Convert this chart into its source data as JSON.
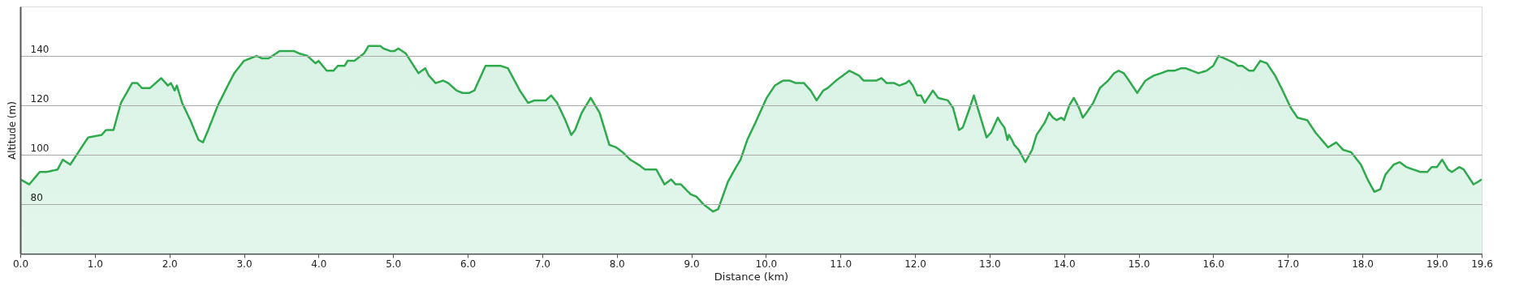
{
  "chart_data": {
    "type": "area",
    "xlabel": "Distance  (km)",
    "ylabel": "Altitude (m)",
    "xlim": [
      0,
      19.6
    ],
    "ylim": [
      60,
      160
    ],
    "xticks": [
      {
        "value": 0,
        "label": "0.0"
      },
      {
        "value": 1,
        "label": "1.0"
      },
      {
        "value": 2,
        "label": "2.0"
      },
      {
        "value": 3,
        "label": "3.0"
      },
      {
        "value": 4,
        "label": "4.0"
      },
      {
        "value": 5,
        "label": "5.0"
      },
      {
        "value": 6,
        "label": "6.0"
      },
      {
        "value": 7,
        "label": "7.0"
      },
      {
        "value": 8,
        "label": "8.0"
      },
      {
        "value": 9,
        "label": "9.0"
      },
      {
        "value": 10,
        "label": "10.0"
      },
      {
        "value": 11,
        "label": "11.0"
      },
      {
        "value": 12,
        "label": "12.0"
      },
      {
        "value": 13,
        "label": "13.0"
      },
      {
        "value": 14,
        "label": "14.0"
      },
      {
        "value": 15,
        "label": "15.0"
      },
      {
        "value": 16,
        "label": "16.0"
      },
      {
        "value": 17,
        "label": "17.0"
      },
      {
        "value": 18,
        "label": "18.0"
      },
      {
        "value": 19,
        "label": "19.0"
      },
      19.6
    ],
    "yticks": [
      80,
      100,
      120,
      140
    ],
    "grid": "y",
    "x": [
      0,
      0.12,
      0.26,
      0.35,
      0.5,
      0.57,
      0.67,
      0.8,
      0.91,
      1.09,
      1.15,
      1.25,
      1.35,
      1.5,
      1.57,
      1.63,
      1.74,
      1.89,
      1.98,
      2.02,
      2.07,
      2.1,
      2.17,
      2.28,
      2.39,
      2.45,
      2.52,
      2.65,
      2.8,
      2.87,
      3.0,
      3.17,
      3.24,
      3.33,
      3.48,
      3.67,
      3.74,
      3.85,
      3.96,
      4.0,
      4.11,
      4.2,
      4.26,
      4.35,
      4.39,
      4.48,
      4.61,
      4.67,
      4.83,
      4.87,
      4.96,
      5.02,
      5.07,
      5.17,
      5.34,
      5.43,
      5.48,
      5.57,
      5.67,
      5.74,
      5.85,
      5.93,
      6.02,
      6.09,
      6.24,
      6.3,
      6.44,
      6.54,
      6.7,
      6.81,
      6.9,
      7.05,
      7.12,
      7.2,
      7.31,
      7.39,
      7.44,
      7.53,
      7.65,
      7.77,
      7.9,
      7.99,
      8.08,
      8.18,
      8.29,
      8.38,
      8.53,
      8.64,
      8.73,
      8.79,
      8.86,
      8.99,
      9.07,
      9.16,
      9.29,
      9.36,
      9.49,
      9.6,
      9.66,
      9.75,
      9.86,
      10.01,
      10.12,
      10.23,
      10.32,
      10.4,
      10.51,
      10.6,
      10.68,
      10.77,
      10.83,
      10.94,
      11.12,
      11.25,
      11.31,
      11.48,
      11.55,
      11.62,
      11.72,
      11.79,
      11.88,
      11.92,
      11.97,
      12.03,
      12.08,
      12.13,
      12.24,
      12.31,
      12.44,
      12.51,
      12.59,
      12.64,
      12.7,
      12.79,
      12.88,
      12.96,
      13.02,
      13.11,
      13.15,
      13.2,
      13.24,
      13.26,
      13.3,
      13.33,
      13.39,
      13.48,
      13.57,
      13.63,
      13.74,
      13.8,
      13.85,
      13.9,
      13.96,
      14.0,
      14.07,
      14.13,
      14.2,
      14.25,
      14.3,
      14.39,
      14.48,
      14.59,
      14.67,
      14.73,
      14.8,
      14.87,
      14.98,
      15.09,
      15.2,
      15.3,
      15.39,
      15.48,
      15.57,
      15.63,
      15.8,
      15.91,
      16.0,
      16.07,
      16.15,
      16.22,
      16.29,
      16.33,
      16.39,
      16.48,
      16.54,
      16.63,
      16.72,
      16.83,
      16.93,
      17.04,
      17.13,
      17.26,
      17.37,
      17.54,
      17.65,
      17.74,
      17.85,
      17.98,
      18.07,
      18.16,
      18.24,
      18.31,
      18.42,
      18.5,
      18.59,
      18.78,
      18.87,
      18.93,
      19.0,
      19.07,
      19.15,
      19.2,
      19.3,
      19.36,
      19.49,
      19.55,
      19.6
    ],
    "series": [
      {
        "color": "#2eaa4c",
        "values": [
          90,
          88,
          93,
          93,
          94,
          98,
          96,
          102,
          107,
          108,
          110,
          110,
          121,
          129,
          129,
          127,
          127,
          131,
          128,
          129,
          126,
          128,
          121,
          114,
          106,
          105,
          110,
          120,
          129,
          133,
          138,
          140,
          139,
          139,
          142,
          142,
          141,
          140,
          137,
          138,
          134,
          134,
          136,
          136,
          138,
          138,
          141,
          144,
          144,
          143,
          142,
          142,
          143,
          141,
          133,
          135,
          132,
          129,
          130,
          129,
          126,
          125,
          125,
          126,
          136,
          136,
          136,
          135,
          126,
          121,
          122,
          122,
          124,
          121,
          114,
          108,
          110,
          117,
          123,
          117,
          104,
          103,
          101,
          98,
          96,
          94,
          94,
          88,
          90,
          88,
          88,
          84,
          83,
          80,
          77,
          78,
          89,
          95,
          98,
          106,
          113,
          123,
          128,
          130,
          130,
          129,
          129,
          126,
          122,
          126,
          127,
          130,
          134,
          132,
          130,
          130,
          131,
          129,
          129,
          128,
          129,
          130,
          128,
          124,
          124,
          121,
          126,
          123,
          122,
          119,
          110,
          111,
          116,
          124,
          115,
          107,
          109,
          115,
          113,
          111,
          106,
          108,
          106,
          104,
          102,
          97,
          102,
          108,
          113,
          117,
          115,
          114,
          115,
          114,
          120,
          123,
          119,
          115,
          117,
          121,
          127,
          130,
          133,
          134,
          133,
          130,
          125,
          130,
          132,
          133,
          134,
          134,
          135,
          135,
          133,
          134,
          136,
          140,
          139,
          138,
          137,
          136,
          136,
          134,
          134,
          138,
          137,
          132,
          126,
          119,
          115,
          114,
          109,
          103,
          105,
          102,
          101,
          96,
          90,
          85,
          86,
          92,
          96,
          97,
          95,
          93,
          93,
          95,
          95,
          98,
          94,
          93,
          95,
          94,
          88,
          89,
          90
        ]
      }
    ]
  }
}
